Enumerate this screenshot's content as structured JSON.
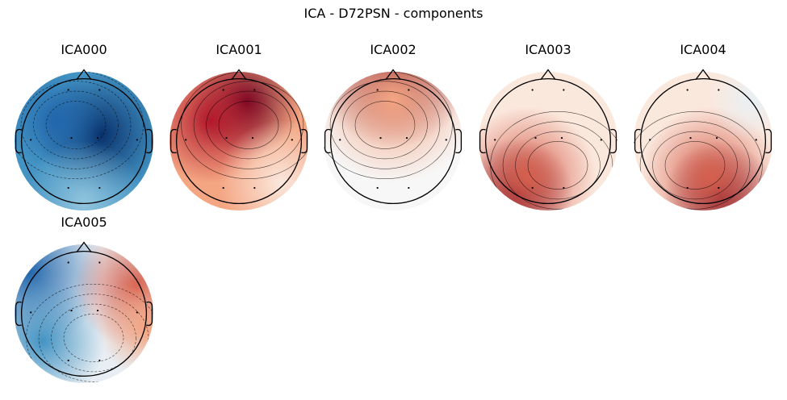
{
  "figure": {
    "title": "ICA - D72PSN - components"
  },
  "colors": {
    "strong_red": "#67001f",
    "red": "#d6604d",
    "light_red": "#f4a582",
    "pale": "#fbe8dd",
    "near_white": "#f7f7f7",
    "light_blue": "#92c5de",
    "blue": "#4393c3",
    "dark_blue": "#08306b",
    "outline": "#000000"
  },
  "components": [
    {
      "title": "ICA000",
      "map": "blue-field"
    },
    {
      "title": "ICA001",
      "map": "red-left-frontal"
    },
    {
      "title": "ICA002",
      "map": "red-frontal-band"
    },
    {
      "title": "ICA003",
      "map": "red-left-occipital"
    },
    {
      "title": "ICA004",
      "map": "red-right-occipital"
    },
    {
      "title": "ICA005",
      "map": "blue-left-red-right"
    }
  ]
}
